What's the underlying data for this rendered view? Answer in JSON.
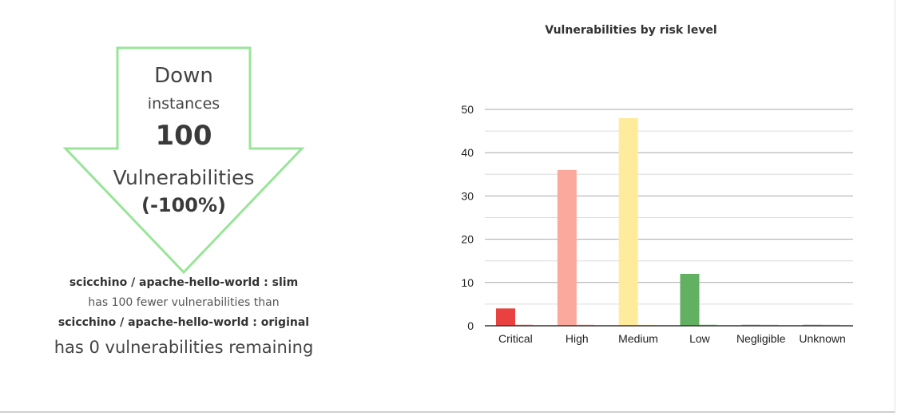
{
  "summary": {
    "direction": "Down",
    "instances_label": "instances",
    "count": "100",
    "vulnerabilities_label": "Vulnerabilities",
    "percent": "(-100%)",
    "image_new": "scicchino / apache-hello-world : slim",
    "comparison_text": "has 100 fewer vulnerabilities than",
    "image_old": "scicchino / apache-hello-world : original",
    "remaining_text": "has 0 vulnerabilities remaining",
    "arrow_color": "#98e598"
  },
  "chart_data": {
    "type": "bar",
    "title": "Vulnerabilities by risk level",
    "xlabel": "",
    "ylabel": "",
    "categories": [
      "Critical",
      "High",
      "Medium",
      "Low",
      "Negligible",
      "Unknown"
    ],
    "ylim": [
      0,
      50
    ],
    "yticks": [
      0,
      10,
      20,
      30,
      40,
      50
    ],
    "grid": true,
    "legend": "none",
    "series": [
      {
        "values": [
          4,
          36,
          48,
          12,
          0,
          0
        ],
        "colors": [
          "#e8413f",
          "#fba99c",
          "#ffeb9c",
          "#62b062",
          "#bdbdbd",
          "#bdbdbd"
        ]
      },
      {
        "values": [
          0,
          0,
          0,
          0,
          0,
          0
        ],
        "colors": [
          "#f6b2ae",
          "#fcd2c9",
          "#fff3c4",
          "#b1d8b1",
          "#d9d9d9",
          "#d9d9d9"
        ]
      }
    ]
  }
}
